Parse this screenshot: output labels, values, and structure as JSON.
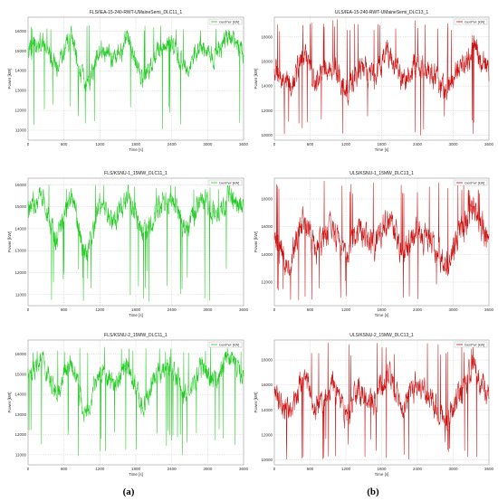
{
  "figure": {
    "captions": [
      "(a)",
      "(b)"
    ]
  },
  "chart_data": [
    {
      "type": "line",
      "title": "FLS/IEA-15-240-RWT-UMaineSemi_DLC11_1",
      "xlabel": "Time [s]",
      "ylabel": "Power [kW]",
      "xlim": [
        0,
        3600
      ],
      "ylim": [
        10500,
        16700
      ],
      "xticks": [
        0,
        600,
        1200,
        1800,
        2400,
        3000,
        3600
      ],
      "yticks": [
        11000,
        12000,
        13000,
        14000,
        15000,
        16000
      ],
      "grid": true,
      "legend_position": "top-right",
      "series": [
        {
          "name": "GenPwr [kW]",
          "color": "#22cc22",
          "mean": 15000,
          "spread": 650,
          "min": 11000,
          "max": 16300,
          "sample_points": [
            [
              0,
              15000
            ],
            [
              240,
              15800
            ],
            [
              480,
              13800
            ],
            [
              720,
              16100
            ],
            [
              960,
              11900
            ],
            [
              1200,
              15200
            ],
            [
              1440,
              14200
            ],
            [
              1680,
              15900
            ],
            [
              1920,
              12600
            ],
            [
              2160,
              15100
            ],
            [
              2400,
              15600
            ],
            [
              2640,
              13500
            ],
            [
              2880,
              15400
            ],
            [
              3120,
              14600
            ],
            [
              3360,
              16200
            ],
            [
              3600,
              15000
            ]
          ]
        }
      ]
    },
    {
      "type": "line",
      "title": "ULS/IEA-15-240-RWT-UMaineSemi_DLC13_1",
      "xlabel": "Time [s]",
      "ylabel": "Power [kW]",
      "xlim": [
        0,
        3600
      ],
      "ylim": [
        9600,
        19600
      ],
      "xticks": [
        0,
        600,
        1200,
        1800,
        2400,
        3000,
        3600
      ],
      "yticks": [
        10000,
        12000,
        14000,
        16000,
        18000
      ],
      "grid": true,
      "legend_position": "top-right",
      "series": [
        {
          "name": "GenPwr [kW]",
          "color": "#cc1111",
          "mean": 15000,
          "spread": 1300,
          "min": 10000,
          "max": 19500,
          "sample_points": [
            [
              0,
              15200
            ],
            [
              240,
              13200
            ],
            [
              480,
              17400
            ],
            [
              720,
              14100
            ],
            [
              960,
              16500
            ],
            [
              1200,
              12800
            ],
            [
              1440,
              15900
            ],
            [
              1680,
              14600
            ],
            [
              1920,
              17800
            ],
            [
              2160,
              13700
            ],
            [
              2400,
              16200
            ],
            [
              2640,
              14900
            ],
            [
              2880,
              12400
            ],
            [
              3120,
              15600
            ],
            [
              3360,
              18700
            ],
            [
              3600,
              15000
            ]
          ]
        }
      ]
    },
    {
      "type": "line",
      "title": "FLS/KSNU-1_15MW_DLC11_1",
      "xlabel": "Time [s]",
      "ylabel": "Power [kW]",
      "xlim": [
        0,
        3600
      ],
      "ylim": [
        10500,
        16300
      ],
      "xticks": [
        0,
        600,
        1200,
        1800,
        2400,
        3000,
        3600
      ],
      "yticks": [
        11000,
        12000,
        13000,
        14000,
        15000,
        16000
      ],
      "grid": true,
      "legend_position": "top-right",
      "series": [
        {
          "name": "GenPwr [kW]",
          "color": "#22cc22",
          "mean": 14950,
          "spread": 650,
          "min": 10700,
          "max": 16000,
          "sample_points": [
            [
              0,
              14800
            ],
            [
              240,
              15700
            ],
            [
              480,
              12600
            ],
            [
              720,
              15900
            ],
            [
              960,
              11400
            ],
            [
              1200,
              15300
            ],
            [
              1440,
              14000
            ],
            [
              1680,
              15800
            ],
            [
              1920,
              12800
            ],
            [
              2160,
              15000
            ],
            [
              2400,
              15500
            ],
            [
              2640,
              13300
            ],
            [
              2880,
              15600
            ],
            [
              3120,
              14300
            ],
            [
              3360,
              15900
            ],
            [
              3600,
              14900
            ]
          ]
        }
      ]
    },
    {
      "type": "line",
      "title": "ULS/KSNU-1_15MW_DLC13_1",
      "xlabel": "Time [s]",
      "ylabel": "Power [kW]",
      "xlim": [
        0,
        3600
      ],
      "ylim": [
        10300,
        19500
      ],
      "xticks": [
        0,
        600,
        1200,
        1800,
        2400,
        3000,
        3600
      ],
      "yticks": [
        12000,
        14000,
        16000,
        18000
      ],
      "grid": true,
      "legend_position": "top-right",
      "series": [
        {
          "name": "GenPwr [kW]",
          "color": "#cc1111",
          "mean": 15000,
          "spread": 1250,
          "min": 10600,
          "max": 19300,
          "sample_points": [
            [
              0,
              14900
            ],
            [
              240,
              12300
            ],
            [
              480,
              17100
            ],
            [
              720,
              13900
            ],
            [
              960,
              16700
            ],
            [
              1200,
              12900
            ],
            [
              1440,
              16000
            ],
            [
              1680,
              14400
            ],
            [
              1920,
              17600
            ],
            [
              2160,
              13600
            ],
            [
              2400,
              16300
            ],
            [
              2640,
              14700
            ],
            [
              2880,
              12200
            ],
            [
              3120,
              15800
            ],
            [
              3360,
              18500
            ],
            [
              3600,
              15100
            ]
          ]
        }
      ]
    },
    {
      "type": "line",
      "title": "FLS/KSNU-2_15MW_DLC11_1",
      "xlabel": "Time [s]",
      "ylabel": "Power [kW]",
      "xlim": [
        0,
        3600
      ],
      "ylim": [
        10500,
        16700
      ],
      "xticks": [
        0,
        600,
        1200,
        1800,
        2400,
        3000,
        3600
      ],
      "yticks": [
        11000,
        12000,
        13000,
        14000,
        15000,
        16000
      ],
      "grid": true,
      "legend_position": "top-right",
      "series": [
        {
          "name": "GenPwr [kW]",
          "color": "#22cc22",
          "mean": 15000,
          "spread": 650,
          "min": 10900,
          "max": 16400,
          "sample_points": [
            [
              0,
              15100
            ],
            [
              240,
              15900
            ],
            [
              480,
              13400
            ],
            [
              720,
              16200
            ],
            [
              960,
              11600
            ],
            [
              1200,
              15400
            ],
            [
              1440,
              14100
            ],
            [
              1680,
              15800
            ],
            [
              1920,
              12400
            ],
            [
              2160,
              15200
            ],
            [
              2400,
              15700
            ],
            [
              2640,
              13200
            ],
            [
              2880,
              15500
            ],
            [
              3120,
              14500
            ],
            [
              3360,
              16300
            ],
            [
              3600,
              15000
            ]
          ]
        }
      ]
    },
    {
      "type": "line",
      "title": "ULS/KSNU-2_15MW_DLC13_1",
      "xlabel": "Time [s]",
      "ylabel": "Power [kW]",
      "xlim": [
        0,
        3600
      ],
      "ylim": [
        9600,
        19600
      ],
      "xticks": [
        0,
        600,
        1200,
        1800,
        2400,
        3000,
        3600
      ],
      "yticks": [
        10000,
        12000,
        14000,
        16000,
        18000
      ],
      "grid": true,
      "legend_position": "top-right",
      "series": [
        {
          "name": "GenPwr [kW]",
          "color": "#cc1111",
          "mean": 15000,
          "spread": 1300,
          "min": 10000,
          "max": 19400,
          "sample_points": [
            [
              0,
              15300
            ],
            [
              240,
              12900
            ],
            [
              480,
              17500
            ],
            [
              720,
              13600
            ],
            [
              960,
              16900
            ],
            [
              1200,
              12600
            ],
            [
              1440,
              16100
            ],
            [
              1680,
              14300
            ],
            [
              1920,
              17900
            ],
            [
              2160,
              13400
            ],
            [
              2400,
              16500
            ],
            [
              2640,
              14800
            ],
            [
              2880,
              11900
            ],
            [
              3120,
              15700
            ],
            [
              3360,
              19000
            ],
            [
              3600,
              14900
            ]
          ]
        }
      ]
    }
  ]
}
